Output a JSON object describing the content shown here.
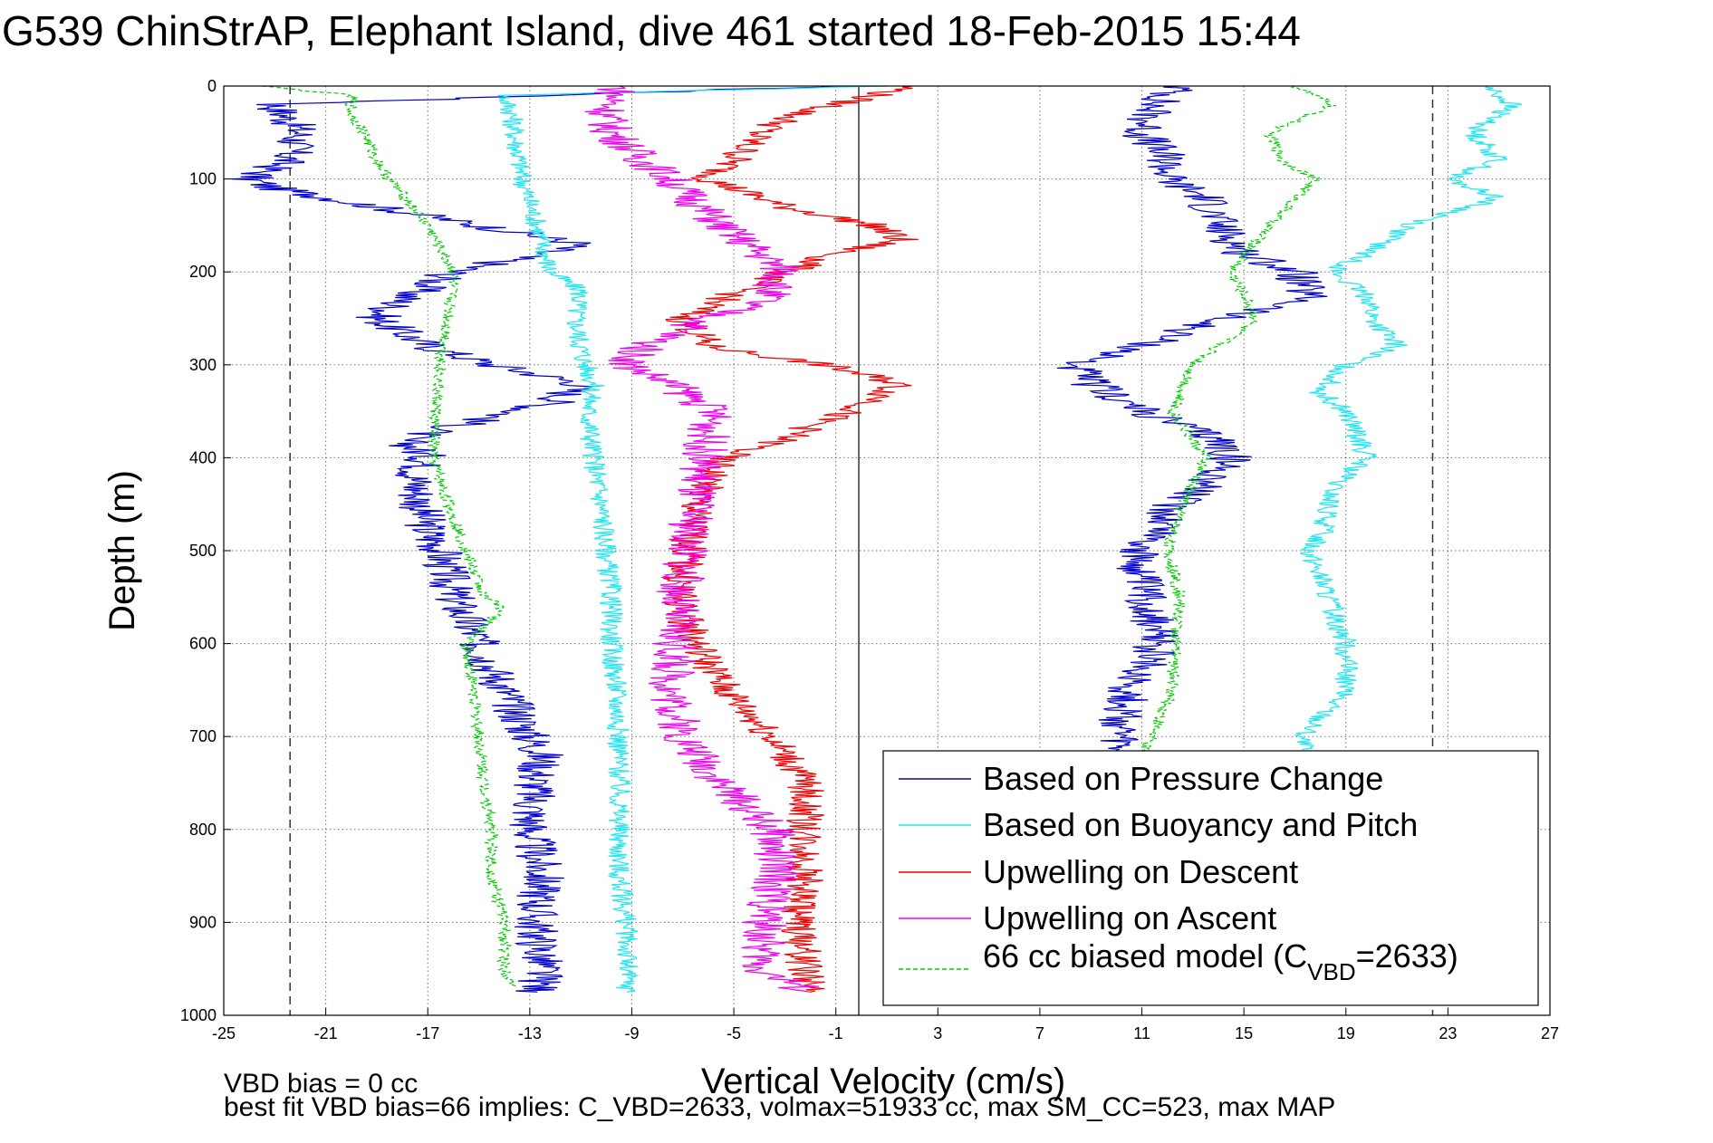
{
  "colors": {
    "pressure": "#0000cc",
    "buoyancy": "#22e5ee",
    "descent": "#ee0000",
    "ascent": "#ee00ee",
    "model": "#00cc00"
  },
  "chart_data": {
    "type": "line",
    "title": "G539 ChinStrAP, Elephant Island, dive 461 started 18-Feb-2015 15:44",
    "xlabel": "Vertical Velocity (cm/s)",
    "ylabel": "Depth (m)",
    "xlim": [
      -25,
      27
    ],
    "ylim": [
      0,
      1000
    ],
    "y_reversed": true,
    "grid": true,
    "legend_position": "bottom-right",
    "x_ticks": [
      "-25",
      "-21",
      "-17",
      "-13",
      "-9",
      "-5",
      "-1",
      "3",
      "7",
      "11",
      "15",
      "19",
      "23",
      "27"
    ],
    "y_ticks": [
      "0",
      "100",
      "200",
      "300",
      "400",
      "500",
      "600",
      "700",
      "800",
      "900",
      "1000"
    ],
    "reference_lines": [
      {
        "x": -22.4,
        "style": "dashed"
      },
      {
        "x": -0.1,
        "style": "solid"
      },
      {
        "x": 22.4,
        "style": "dashed"
      }
    ],
    "legend": [
      {
        "label": "Based on Pressure Change",
        "key": "pressure"
      },
      {
        "label": "Based on Buoyancy and Pitch",
        "key": "buoyancy"
      },
      {
        "label": "Upwelling on Descent",
        "key": "descent"
      },
      {
        "label": "Upwelling on Ascent",
        "key": "ascent"
      },
      {
        "label_main": "66 cc biased model (C",
        "label_sub": "VBD",
        "label_end": "=2633)",
        "key": "model"
      }
    ],
    "series": [
      {
        "name": "Based on Pressure Change",
        "key": "pressure",
        "segments": [
          {
            "y": [
              0,
              20,
              50,
              80,
              100,
              110,
              130,
              150,
              170,
              200,
              230,
              250,
              280,
              300,
              320,
              340,
              360,
              380,
              400,
              420,
              450,
              480,
              500,
              550,
              600,
              650,
              700,
              720,
              750,
              800,
              850,
              900,
              950,
              975
            ],
            "x": [
              -1,
              -23,
              -22,
              -22.5,
              -24,
              -23,
              -19,
              -15,
              -11,
              -16,
              -18,
              -19,
              -17,
              -14.5,
              -11,
              -12,
              -15,
              -18,
              -17,
              -17.5,
              -17.3,
              -17,
              -16.5,
              -16,
              -15,
              -14,
              -13,
              -12.5,
              -12.8,
              -13,
              -12.5,
              -12.8,
              -12.5,
              -12.7
            ]
          },
          {
            "y": [
              0,
              20,
              50,
              80,
              100,
              120,
              150,
              180,
              200,
              230,
              250,
              280,
              300,
              320,
              350,
              380,
              400,
              430,
              450,
              480,
              500,
              530,
              560,
              600,
              650,
              700,
              715
            ],
            "x": [
              12.5,
              11.5,
              11,
              12,
              12,
              13.5,
              14,
              15,
              17,
              17.5,
              14,
              11,
              8.3,
              9,
              11,
              14,
              14.5,
              13.5,
              12.2,
              11.8,
              10.8,
              10.9,
              11.3,
              11.6,
              10.5,
              10,
              10
            ]
          }
        ]
      },
      {
        "name": "Based on Buoyancy and Pitch",
        "key": "buoyancy",
        "segments": [
          {
            "y": [
              0,
              10,
              30,
              50,
              100,
              150,
              200,
              220,
              250,
              280,
              300,
              320,
              350,
              400,
              450,
              500,
              550,
              600,
              650,
              700,
              800,
              850,
              900,
              950,
              975
            ],
            "x": [
              1,
              -14,
              -13.7,
              -13.6,
              -13.3,
              -12.7,
              -12.2,
              -11,
              -11.2,
              -11,
              -10.8,
              -10.5,
              -10.7,
              -10.5,
              -10.2,
              -10,
              -9.8,
              -9.8,
              -9.6,
              -9.5,
              -9.5,
              -9.5,
              -9.2,
              -9.2,
              -9.2
            ]
          },
          {
            "y": [
              0,
              20,
              50,
              80,
              100,
              120,
              150,
              180,
              200,
              230,
              250,
              280,
              300,
              330,
              350,
              380,
              400,
              430,
              450,
              480,
              500,
              550,
              600,
              650,
              700,
              715
            ],
            "x": [
              24.5,
              25.5,
              24,
              25,
              23,
              25,
              21.5,
              19.8,
              18.5,
              20,
              20,
              21,
              19,
              18,
              19,
              19.5,
              19.8,
              18.5,
              18.3,
              18.1,
              17.6,
              18.3,
              19,
              19,
              17.3,
              17.3
            ]
          }
        ]
      },
      {
        "name": "Upwelling on Descent",
        "key": "descent",
        "segments": [
          {
            "y": [
              0,
              30,
              50,
              80,
              100,
              130,
              150,
              165,
              180,
              200,
              230,
              250,
              280,
              300,
              320,
              340,
              360,
              380,
              400,
              450,
              500,
              550,
              600,
              650,
              700,
              750,
              800,
              850,
              900,
              950,
              975
            ],
            "x": [
              2,
              -2.5,
              -4,
              -5,
              -6,
              -3,
              0.5,
              1.5,
              -1,
              -3,
              -5.5,
              -7,
              -6,
              -1.5,
              1.5,
              0.5,
              -1.5,
              -3,
              -5.5,
              -6.5,
              -6.8,
              -7.2,
              -6.5,
              -5.3,
              -3.5,
              -2.2,
              -2.2,
              -2.2,
              -2.5,
              -2.2,
              -2
            ]
          }
        ]
      },
      {
        "name": "Upwelling on Ascent",
        "key": "ascent",
        "segments": [
          {
            "y": [
              0,
              30,
              50,
              80,
              100,
              150,
              170,
              200,
              230,
              250,
              280,
              300,
              320,
              350,
              400,
              450,
              500,
              550,
              600,
              650,
              700,
              750,
              800,
              850,
              900,
              950,
              975
            ],
            "x": [
              -9.5,
              -10,
              -9.8,
              -8.5,
              -7.5,
              -5.5,
              -4.5,
              -3,
              -3.8,
              -6,
              -8.5,
              -9.2,
              -7.5,
              -5.8,
              -6.2,
              -6.6,
              -6.8,
              -7.2,
              -7.3,
              -7.5,
              -7,
              -5.5,
              -3.5,
              -3.3,
              -3.8,
              -4,
              -2
            ]
          }
        ]
      },
      {
        "name": "66 cc biased model (CVBD=2633)",
        "key": "model",
        "segments": [
          {
            "y": [
              0,
              10,
              30,
              50,
              80,
              100,
              150,
              200,
              250,
              300,
              350,
              400,
              450,
              500,
              550,
              560,
              600,
              650,
              700,
              750,
              800,
              850,
              900,
              950,
              970
            ],
            "x": [
              -23.5,
              -20,
              -20,
              -19.5,
              -19,
              -18.5,
              -17,
              -16,
              -16.2,
              -16.5,
              -16.7,
              -16.8,
              -16.2,
              -15.5,
              -14.8,
              -14,
              -15.5,
              -15.2,
              -15,
              -14.8,
              -14.5,
              -14.5,
              -14,
              -14,
              -13.5
            ]
          },
          {
            "y": [
              0,
              20,
              50,
              80,
              100,
              150,
              200,
              250,
              300,
              350,
              400,
              450,
              500,
              550,
              600,
              650,
              700,
              715
            ],
            "x": [
              17,
              18.5,
              16,
              16.5,
              17.8,
              16,
              14.5,
              15.5,
              13,
              12.2,
              13.5,
              12.6,
              12,
              12.5,
              12.3,
              12.2,
              11.4,
              11
            ]
          }
        ]
      }
    ],
    "annotations": {
      "vbd_bias": "VBD bias = 0 cc",
      "best_fit": "best fit VBD bias=66 implies: C_VBD=2633, volmax=51933 cc, max SM_CC=523, max MAP"
    }
  }
}
